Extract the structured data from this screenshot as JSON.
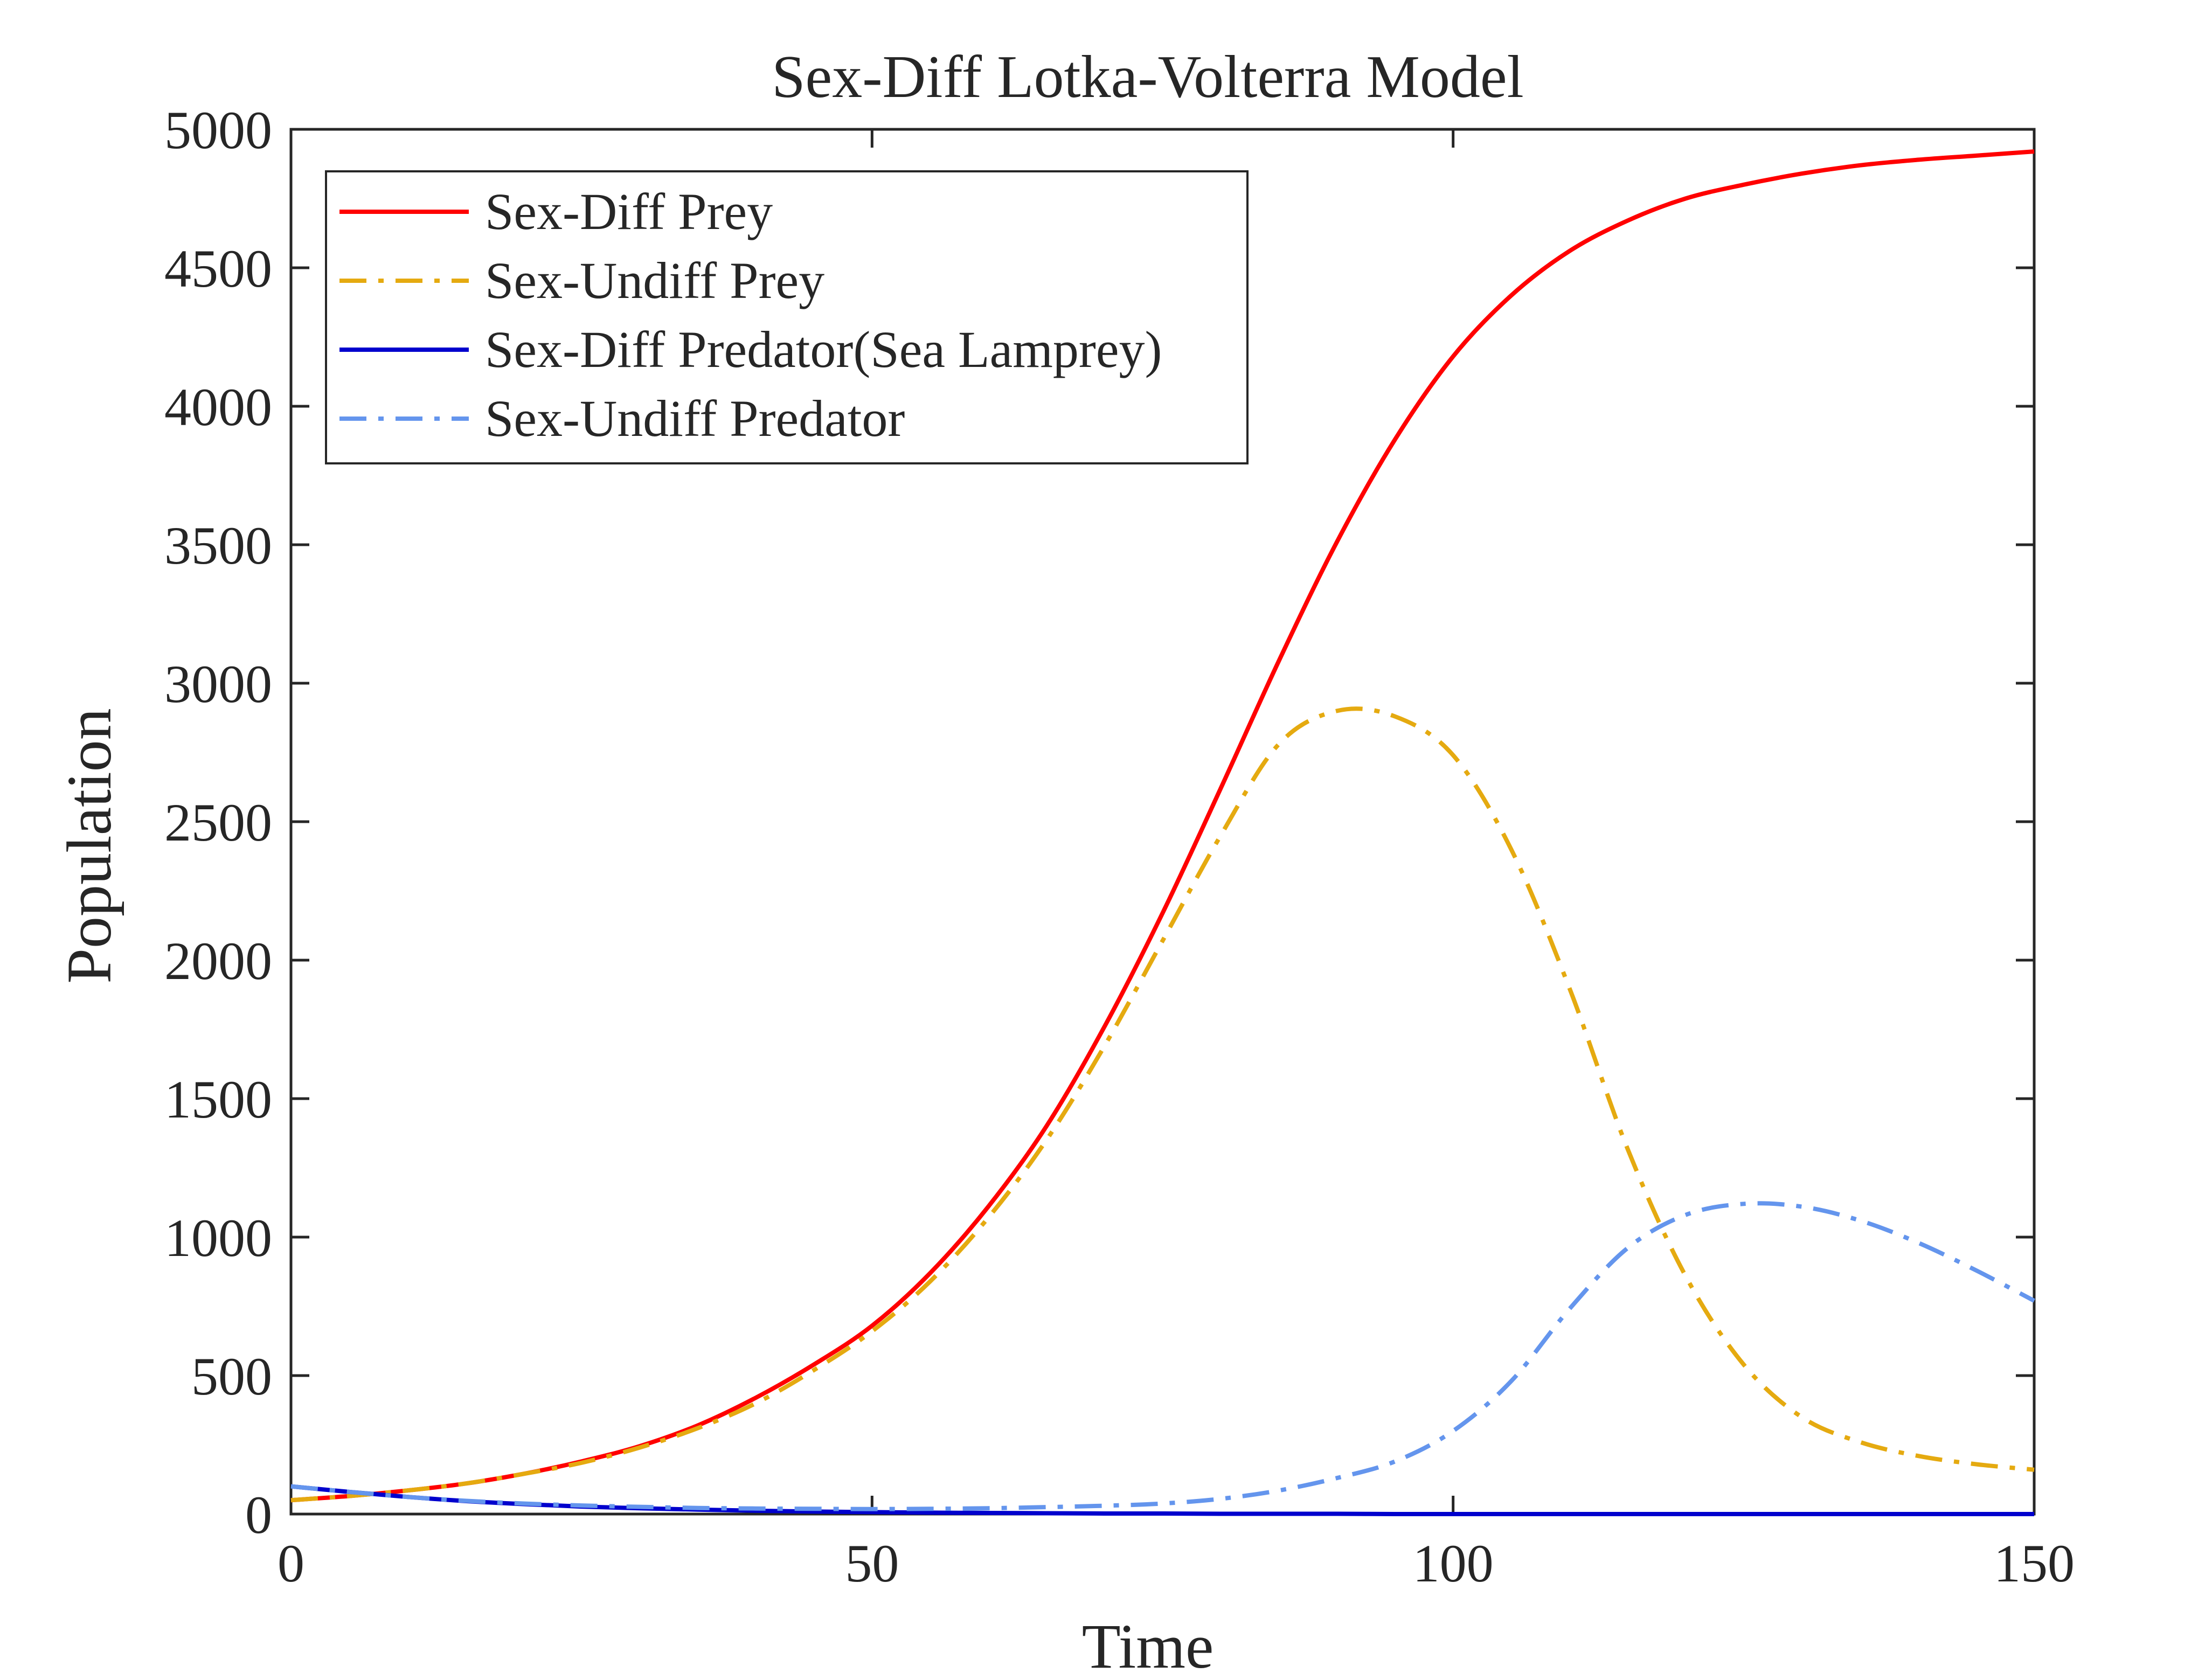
{
  "chart_data": {
    "type": "line",
    "title": "Sex-Diff Lotka-Volterra Model",
    "xlabel": "Time",
    "ylabel": "Population",
    "xlim": [
      0,
      150
    ],
    "ylim": [
      0,
      5000
    ],
    "xticks": [
      0,
      50,
      100,
      150
    ],
    "yticks": [
      0,
      500,
      1000,
      1500,
      2000,
      2500,
      3000,
      3500,
      4000,
      4500,
      5000
    ],
    "grid": false,
    "box": true,
    "legend_position": "top-left",
    "x": [
      0,
      5,
      10,
      15,
      20,
      25,
      30,
      35,
      40,
      45,
      50,
      55,
      60,
      65,
      70,
      75,
      80,
      85,
      90,
      95,
      100,
      105,
      110,
      115,
      120,
      125,
      130,
      135,
      140,
      145,
      150
    ],
    "series": [
      {
        "name": "Sex-Diff Prey",
        "color": "#ff0000",
        "dash": "solid",
        "values": [
          50,
          65,
          85,
          110,
          145,
          190,
          245,
          320,
          420,
          540,
          680,
          870,
          1110,
          1400,
          1760,
          2170,
          2620,
          3080,
          3510,
          3880,
          4180,
          4400,
          4560,
          4670,
          4750,
          4800,
          4840,
          4870,
          4890,
          4905,
          4920
        ]
      },
      {
        "name": "Sex-Undiff Prey",
        "color": "#e5aa10",
        "dash": "dashdot",
        "values": [
          50,
          65,
          85,
          110,
          145,
          185,
          240,
          310,
          400,
          520,
          660,
          840,
          1070,
          1350,
          1690,
          2070,
          2450,
          2780,
          2900,
          2880,
          2740,
          2400,
          1900,
          1320,
          860,
          540,
          350,
          260,
          210,
          180,
          160
        ]
      },
      {
        "name": "Sex-Diff Predator(Sea Lamprey)",
        "color": "#0000cd",
        "dash": "solid",
        "values": [
          100,
          80,
          62,
          47,
          36,
          27,
          21,
          16,
          12,
          9,
          7,
          5,
          4,
          3,
          2,
          2,
          1,
          1,
          1,
          0,
          0,
          0,
          0,
          0,
          0,
          0,
          0,
          0,
          0,
          0,
          0
        ]
      },
      {
        "name": "Sex-Undiff Predator",
        "color": "#6495ed",
        "dash": "dashdot",
        "values": [
          100,
          80,
          62,
          48,
          38,
          31,
          26,
          22,
          20,
          19,
          18,
          19,
          21,
          25,
          30,
          38,
          55,
          85,
          130,
          190,
          300,
          480,
          740,
          960,
          1080,
          1120,
          1110,
          1060,
          980,
          880,
          770
        ]
      }
    ]
  }
}
